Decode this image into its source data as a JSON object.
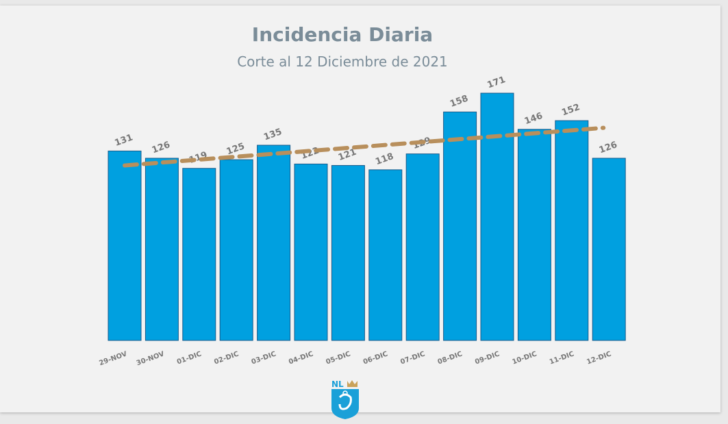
{
  "chart_data": {
    "type": "bar",
    "title": "Incidencia Diaria",
    "subtitle": "Corte al 12 Diciembre de 2021",
    "categories": [
      "29-NOV",
      "30-NOV",
      "01-DIC",
      "02-DIC",
      "03-DIC",
      "04-DIC",
      "05-DIC",
      "06-DIC",
      "07-DIC",
      "08-DIC",
      "09-DIC",
      "10-DIC",
      "11-DIC",
      "12-DIC"
    ],
    "values": [
      131,
      126,
      119,
      125,
      135,
      122,
      121,
      118,
      129,
      158,
      171,
      146,
      152,
      126
    ],
    "ylim": [
      0,
      180
    ],
    "grid": false,
    "bar_color": "#00a0e0",
    "bar_border_color": "#1a5a8a",
    "trendline": {
      "type": "linear",
      "start": 121,
      "end": 147,
      "color": "#b88f5c",
      "style": "dashed"
    }
  },
  "logo": {
    "text": "NL"
  }
}
